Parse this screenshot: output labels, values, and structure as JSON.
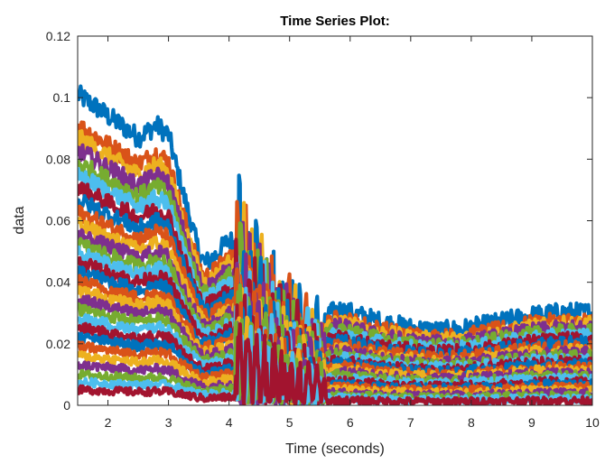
{
  "chart_data": {
    "type": "line",
    "title": "Time Series Plot:",
    "xlabel": "Time (seconds)",
    "ylabel": "data",
    "xlim": [
      1.5,
      10
    ],
    "ylim": [
      0,
      0.12
    ],
    "x_ticks": [
      2,
      3,
      4,
      5,
      6,
      7,
      8,
      9,
      10
    ],
    "y_ticks": [
      0,
      0.02,
      0.04,
      0.06,
      0.08,
      0.1,
      0.12
    ],
    "x_tick_labels": [
      "2",
      "3",
      "4",
      "5",
      "6",
      "7",
      "8",
      "9",
      "10"
    ],
    "y_tick_labels": [
      "0",
      "0.02",
      "0.04",
      "0.06",
      "0.08",
      "0.1",
      "0.12"
    ],
    "grid": false,
    "legend": "none",
    "colors": [
      "#0072BD",
      "#D95319",
      "#EDB120",
      "#7E2F8E",
      "#77AC30",
      "#4DBEEE",
      "#A2142F"
    ],
    "profile": {
      "x": [
        1.5,
        1.8,
        2.0,
        2.3,
        2.5,
        2.8,
        3.0,
        3.2,
        3.5,
        3.6,
        3.8,
        4.0,
        4.3,
        4.5,
        4.8,
        5.0,
        5.2,
        5.3,
        5.5,
        5.8,
        6.0,
        6.5,
        7.0,
        7.5,
        8.0,
        8.5,
        9.0,
        9.5,
        10.0
      ],
      "y": [
        0.101,
        0.097,
        0.094,
        0.09,
        0.087,
        0.091,
        0.088,
        0.072,
        0.05,
        0.046,
        0.049,
        0.054,
        0.048,
        0.04,
        0.028,
        0.022,
        0.016,
        0.012,
        0.028,
        0.031,
        0.03,
        0.027,
        0.025,
        0.024,
        0.025,
        0.027,
        0.029,
        0.03,
        0.03
      ]
    },
    "series_scales": [
      1.0,
      0.9,
      0.86,
      0.82,
      0.78,
      0.74,
      0.7,
      0.66,
      0.62,
      0.58,
      0.55,
      0.52,
      0.49,
      0.46,
      0.43,
      0.4,
      0.37,
      0.34,
      0.31,
      0.28,
      0.25,
      0.22,
      0.19,
      0.16,
      0.13,
      0.1,
      0.075,
      0.05
    ],
    "oscillation": {
      "x_range": [
        4.1,
        5.6
      ],
      "peak": 0.081
    }
  }
}
